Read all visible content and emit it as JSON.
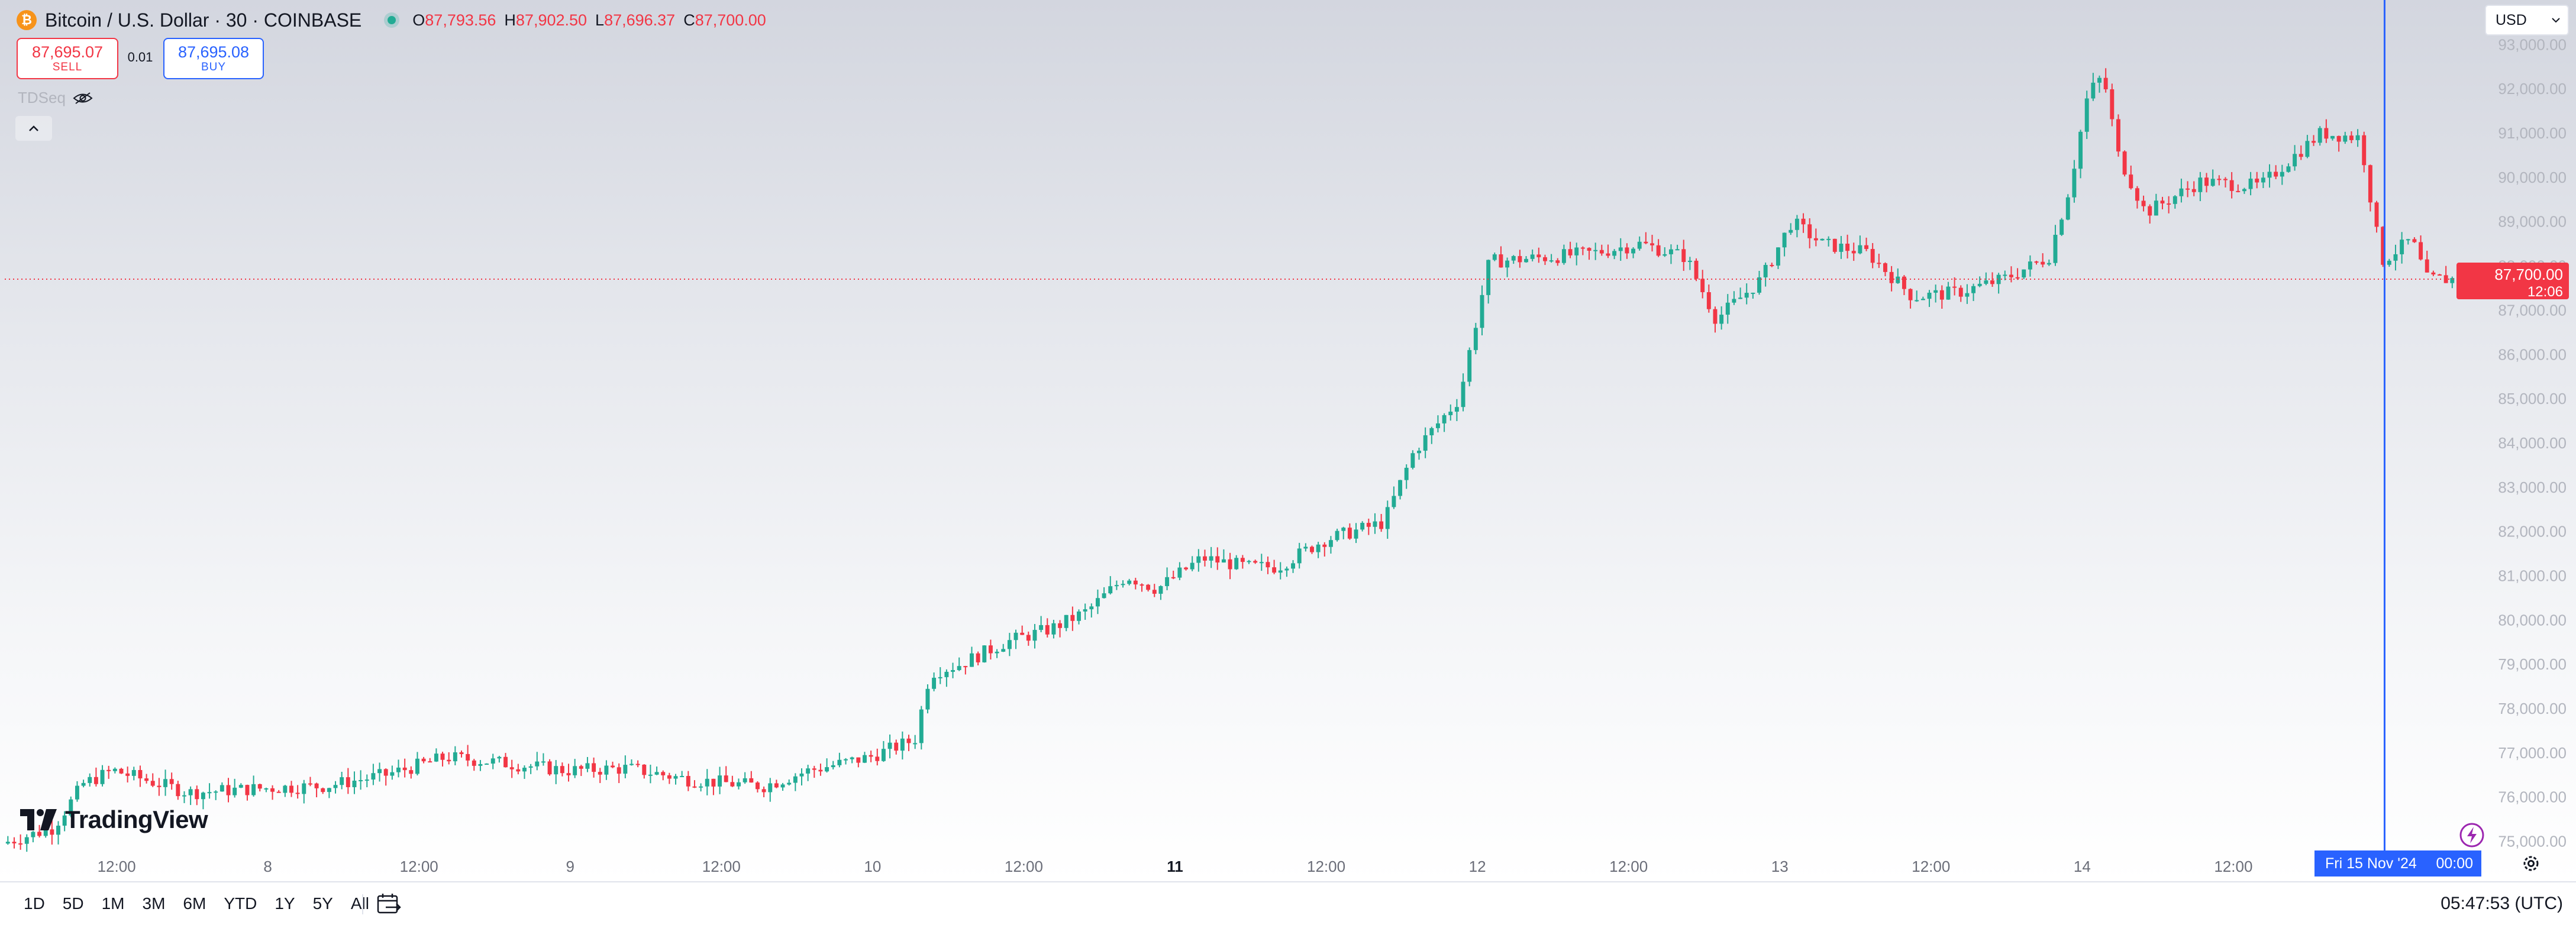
{
  "header": {
    "symbol_icon": "bitcoin-icon",
    "title": "Bitcoin / U.S. Dollar · 30 · COINBASE",
    "ohlc": [
      {
        "label": "O",
        "value": "87,793.56"
      },
      {
        "label": "H",
        "value": "87,902.50"
      },
      {
        "label": "L",
        "value": "87,696.37"
      },
      {
        "label": "C",
        "value": "87,700.00"
      }
    ]
  },
  "trade": {
    "sell_price": "87,695.07",
    "sell_label": "SELL",
    "spread": "0.01",
    "buy_price": "87,695.08",
    "buy_label": "BUY"
  },
  "indicator": {
    "name": "TDSeq",
    "icon": "eye-icon"
  },
  "logo_text": "TradingView",
  "currency": {
    "selected": "USD"
  },
  "crosshair_date": "Fri 15 Nov '24",
  "crosshair_time": "00:00",
  "current_price": {
    "value": "87,700.00",
    "countdown": "12:06"
  },
  "ranges": [
    "1D",
    "5D",
    "1M",
    "3M",
    "6M",
    "YTD",
    "1Y",
    "5Y",
    "All"
  ],
  "clock": "05:47:53 (UTC)",
  "colors": {
    "up": "#22ab94",
    "down": "#f23645",
    "crosshair": "#2962ff",
    "accent": "#2962ff"
  },
  "chart_data": {
    "type": "candlestick",
    "interval": "30 minutes",
    "y_ticks": [
      "75,000.00",
      "76,000.00",
      "77,000.00",
      "78,000.00",
      "79,000.00",
      "80,000.00",
      "81,000.00",
      "82,000.00",
      "83,000.00",
      "84,000.00",
      "85,000.00",
      "86,000.00",
      "87,000.00",
      "88,000.00",
      "89,000.00",
      "90,000.00",
      "91,000.00",
      "92,000.00",
      "93,000.00"
    ],
    "ylim": [
      74900,
      93900
    ],
    "x_ticks": [
      {
        "label": "12:00",
        "day": 7.5
      },
      {
        "label": "8",
        "day": 8
      },
      {
        "label": "12:00",
        "day": 8.5
      },
      {
        "label": "9",
        "day": 9
      },
      {
        "label": "12:00",
        "day": 9.5
      },
      {
        "label": "10",
        "day": 10
      },
      {
        "label": "12:00",
        "day": 10.5
      },
      {
        "label": "11",
        "day": 11,
        "bold": true
      },
      {
        "label": "12:00",
        "day": 11.5
      },
      {
        "label": "12",
        "day": 12
      },
      {
        "label": "12:00",
        "day": 12.5
      },
      {
        "label": "13",
        "day": 13
      },
      {
        "label": "12:00",
        "day": 13.5
      },
      {
        "label": "14",
        "day": 14
      },
      {
        "label": "12:00",
        "day": 14.5
      }
    ],
    "xlim_days": [
      7.13,
      15.23
    ],
    "crosshair_day": 15.0,
    "last_price": 87700,
    "price_path": [
      [
        7.13,
        74950
      ],
      [
        7.3,
        75300
      ],
      [
        7.4,
        76300
      ],
      [
        7.5,
        76600
      ],
      [
        7.6,
        76400
      ],
      [
        7.75,
        76100
      ],
      [
        8.0,
        76200
      ],
      [
        8.2,
        76250
      ],
      [
        8.4,
        76500
      ],
      [
        8.6,
        76900
      ],
      [
        8.75,
        76800
      ],
      [
        9.0,
        76600
      ],
      [
        9.2,
        76650
      ],
      [
        9.4,
        76400
      ],
      [
        9.55,
        76300
      ],
      [
        9.65,
        76250
      ],
      [
        9.8,
        76600
      ],
      [
        10.0,
        76900
      ],
      [
        10.15,
        77300
      ],
      [
        10.2,
        78800
      ],
      [
        10.3,
        79000
      ],
      [
        10.45,
        79500
      ],
      [
        10.6,
        79800
      ],
      [
        10.72,
        80200
      ],
      [
        10.85,
        81000
      ],
      [
        10.95,
        80700
      ],
      [
        11.1,
        81400
      ],
      [
        11.25,
        81200
      ],
      [
        11.35,
        81200
      ],
      [
        11.5,
        81800
      ],
      [
        11.6,
        82000
      ],
      [
        11.7,
        82200
      ],
      [
        11.8,
        83800
      ],
      [
        11.95,
        85000
      ],
      [
        12.05,
        88100
      ],
      [
        12.25,
        88200
      ],
      [
        12.4,
        88300
      ],
      [
        12.55,
        88500
      ],
      [
        12.7,
        88200
      ],
      [
        12.8,
        86800
      ],
      [
        12.95,
        87700
      ],
      [
        13.05,
        89000
      ],
      [
        13.15,
        88500
      ],
      [
        13.3,
        88300
      ],
      [
        13.45,
        87300
      ],
      [
        13.6,
        87400
      ],
      [
        13.75,
        87700
      ],
      [
        13.9,
        88200
      ],
      [
        13.97,
        89800
      ],
      [
        14.03,
        91900
      ],
      [
        14.08,
        92300
      ],
      [
        14.13,
        90500
      ],
      [
        14.22,
        89200
      ],
      [
        14.4,
        89900
      ],
      [
        14.6,
        89800
      ],
      [
        14.68,
        90300
      ],
      [
        14.8,
        91000
      ],
      [
        14.93,
        90900
      ],
      [
        15.0,
        88100
      ],
      [
        15.1,
        88600
      ],
      [
        15.15,
        87700
      ],
      [
        15.23,
        87700
      ]
    ],
    "candles_per_day": 48,
    "seed": 7
  }
}
